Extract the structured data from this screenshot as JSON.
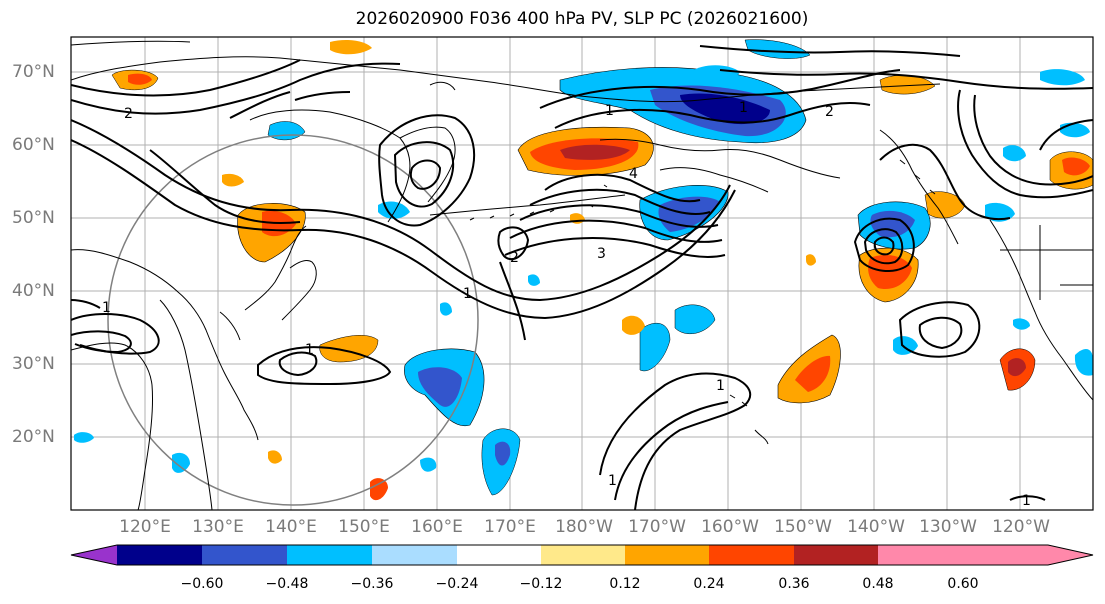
{
  "title": "2026020900 F036 400 hPa PV, SLP PC (2026021600)",
  "map": {
    "lon_ticks": [
      "120°E",
      "130°E",
      "140°E",
      "150°E",
      "160°E",
      "170°E",
      "180°W",
      "170°W",
      "160°W",
      "150°W",
      "140°W",
      "130°W",
      "120°W"
    ],
    "lat_ticks": [
      "70°N",
      "60°N",
      "50°N",
      "40°N",
      "30°N",
      "20°N"
    ],
    "contour_labels": [
      "2",
      "1",
      "2",
      "1",
      "4",
      "3",
      "2",
      "1",
      "1",
      "1",
      "1",
      "1",
      "1"
    ]
  },
  "colorbar": {
    "ticks": [
      "−0.60",
      "−0.48",
      "−0.36",
      "−0.24",
      "−0.12",
      "0.12",
      "0.24",
      "0.36",
      "0.48",
      "0.60"
    ],
    "colors": [
      "#9933cc",
      "#00008b",
      "#3355cc",
      "#00bfff",
      "#aaddff",
      "#ffffff",
      "#ffe98a",
      "#ffa500",
      "#ff4500",
      "#b22222",
      "#ff88aa"
    ]
  }
}
